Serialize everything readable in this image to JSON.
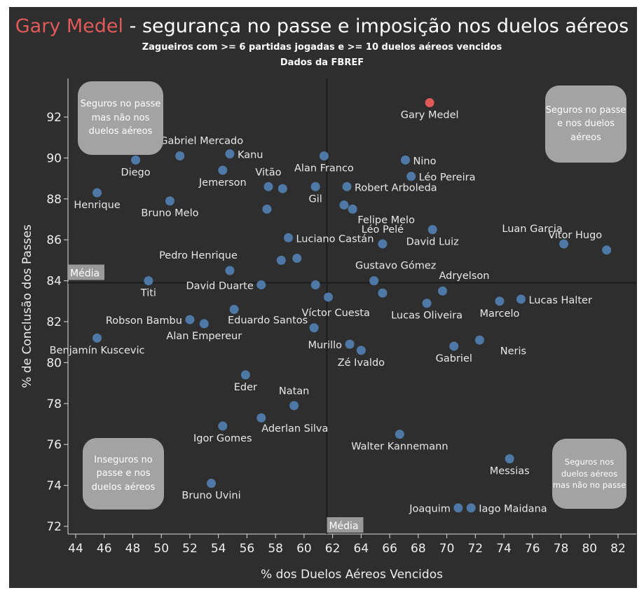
{
  "title": {
    "highlight": "Gary Medel",
    "rest": " - segurança no passe e imposição nos duelos aéreos"
  },
  "subtitle": "Zagueiros com >= 6 partidas jogadas e >= 10 duelos aéreos vencidos",
  "source": "Dados da FBREF",
  "quadrants": {
    "top_left": "Seguros no passe mas não nos duelos aéreos",
    "top_right": "Seguros no passe e nos duelos aéreos",
    "bottom_left": "Inseguros no passe e nos duelos aéreos",
    "bottom_right": "Seguros nos duelos aéreos mas não no passe"
  },
  "colors": {
    "point": "#4e79a7",
    "highlight": "#e05a5a",
    "background": "#2e2e2e"
  },
  "chart_data": {
    "type": "scatter",
    "title": "Gary Medel - segurança no passe e imposição nos duelos aéreos",
    "xlabel": "% dos Duelos Aéreos Vencidos",
    "ylabel": "% de Conclusão dos Passes",
    "xlim": [
      43.7,
      83.2
    ],
    "ylim": [
      71.6,
      94.0
    ],
    "xticks": [
      44,
      46,
      48,
      50,
      52,
      54,
      56,
      58,
      60,
      62,
      64,
      66,
      68,
      70,
      72,
      74,
      76,
      78,
      80,
      82
    ],
    "yticks": [
      72,
      74,
      76,
      78,
      80,
      82,
      84,
      86,
      88,
      90,
      92
    ],
    "grid": false,
    "reference_lines": {
      "x_mean": 61.6,
      "y_mean": 83.9,
      "label": "Média"
    },
    "points": [
      {
        "name": "Gary Medel",
        "x": 68.8,
        "y": 92.7,
        "highlight": true,
        "pos": "below"
      },
      {
        "name": "Diego",
        "x": 48.2,
        "y": 89.9,
        "pos": "below"
      },
      {
        "name": "Gabriel Mercado",
        "x": 51.3,
        "y": 90.1,
        "pos": "above-right"
      },
      {
        "name": "Kanu",
        "x": 54.8,
        "y": 90.2,
        "pos": "right"
      },
      {
        "name": "Jemerson",
        "x": 54.3,
        "y": 89.4,
        "pos": "below"
      },
      {
        "name": "Henrique",
        "x": 45.5,
        "y": 88.3,
        "pos": "below"
      },
      {
        "name": "Bruno Melo",
        "x": 50.6,
        "y": 87.9,
        "pos": "below"
      },
      {
        "name": "Vitão",
        "x": 57.5,
        "y": 88.6,
        "pos": "above"
      },
      {
        "name": "",
        "x": 58.5,
        "y": 88.5,
        "pos": "none"
      },
      {
        "name": "",
        "x": 57.4,
        "y": 87.5,
        "pos": "none"
      },
      {
        "name": "Alan Franco",
        "x": 61.4,
        "y": 90.1,
        "pos": "below"
      },
      {
        "name": "Gil",
        "x": 60.8,
        "y": 88.6,
        "pos": "below"
      },
      {
        "name": "Robert Arboleda",
        "x": 63.0,
        "y": 88.6,
        "pos": "right"
      },
      {
        "name": "",
        "x": 62.8,
        "y": 87.7,
        "pos": "none"
      },
      {
        "name": "Felipe Melo",
        "x": 63.4,
        "y": 87.5,
        "pos": "below-right"
      },
      {
        "name": "Nino",
        "x": 67.1,
        "y": 89.9,
        "pos": "right"
      },
      {
        "name": "Léo Pereira",
        "x": 67.5,
        "y": 89.1,
        "pos": "right"
      },
      {
        "name": "Léo Pelé",
        "x": 65.5,
        "y": 85.8,
        "pos": "above"
      },
      {
        "name": "David Luiz",
        "x": 69.0,
        "y": 86.5,
        "pos": "below"
      },
      {
        "name": "Luciano Castán",
        "x": 58.9,
        "y": 86.1,
        "pos": "right"
      },
      {
        "name": "",
        "x": 58.4,
        "y": 85.0,
        "pos": "none"
      },
      {
        "name": "",
        "x": 59.5,
        "y": 85.1,
        "pos": "none"
      },
      {
        "name": "Pedro Henrique",
        "x": 54.8,
        "y": 84.5,
        "pos": "above-left"
      },
      {
        "name": "Titi",
        "x": 49.1,
        "y": 84.0,
        "pos": "below"
      },
      {
        "name": "David Duarte",
        "x": 57.0,
        "y": 83.8,
        "pos": "left"
      },
      {
        "name": "",
        "x": 60.8,
        "y": 83.8,
        "pos": "none"
      },
      {
        "name": "",
        "x": 61.7,
        "y": 83.2,
        "pos": "none"
      },
      {
        "name": "Gustavo Gómez",
        "x": 64.9,
        "y": 84.0,
        "pos": "above-right"
      },
      {
        "name": "",
        "x": 65.5,
        "y": 83.4,
        "pos": "none"
      },
      {
        "name": "Adryelson",
        "x": 69.7,
        "y": 83.5,
        "pos": "above-right"
      },
      {
        "name": "Lucas Oliveira",
        "x": 68.6,
        "y": 82.9,
        "pos": "below"
      },
      {
        "name": "Marcelo",
        "x": 73.7,
        "y": 83.0,
        "pos": "below"
      },
      {
        "name": "Lucas Halter",
        "x": 75.2,
        "y": 83.1,
        "pos": "right"
      },
      {
        "name": "Luan Garcia",
        "x": 78.2,
        "y": 85.8,
        "pos": "above-left"
      },
      {
        "name": "Vitor Hugo",
        "x": 81.2,
        "y": 85.5,
        "pos": "above-left"
      },
      {
        "name": "Eduardo Santos",
        "x": 55.1,
        "y": 82.6,
        "pos": "below-right"
      },
      {
        "name": "Robson Bambu",
        "x": 52.0,
        "y": 82.1,
        "pos": "left"
      },
      {
        "name": "Alan Empereur",
        "x": 53.0,
        "y": 81.9,
        "pos": "below"
      },
      {
        "name": "Benjamín Kuscevic",
        "x": 45.5,
        "y": 81.2,
        "pos": "below"
      },
      {
        "name": "Víctor Cuesta",
        "x": 60.7,
        "y": 81.7,
        "pos": "above-right"
      },
      {
        "name": "Murillo",
        "x": 63.2,
        "y": 80.9,
        "pos": "left"
      },
      {
        "name": "Zé Ivaldo",
        "x": 64.0,
        "y": 80.6,
        "pos": "below"
      },
      {
        "name": "Gabriel",
        "x": 70.5,
        "y": 80.8,
        "pos": "below"
      },
      {
        "name": "Neris",
        "x": 72.3,
        "y": 81.1,
        "pos": "below-right"
      },
      {
        "name": "Eder",
        "x": 55.9,
        "y": 79.4,
        "pos": "below"
      },
      {
        "name": "Natan",
        "x": 59.3,
        "y": 77.9,
        "pos": "above"
      },
      {
        "name": "Aderlan Silva",
        "x": 57.0,
        "y": 77.3,
        "pos": "below-right"
      },
      {
        "name": "Igor Gomes",
        "x": 54.3,
        "y": 76.9,
        "pos": "below"
      },
      {
        "name": "Walter Kannemann",
        "x": 66.7,
        "y": 76.5,
        "pos": "below"
      },
      {
        "name": "Messias",
        "x": 74.4,
        "y": 75.3,
        "pos": "below"
      },
      {
        "name": "Bruno Uvini",
        "x": 53.5,
        "y": 74.1,
        "pos": "below"
      },
      {
        "name": "Joaquim",
        "x": 70.8,
        "y": 72.9,
        "pos": "left"
      },
      {
        "name": "Iago Maidana",
        "x": 71.7,
        "y": 72.9,
        "pos": "right"
      }
    ]
  }
}
